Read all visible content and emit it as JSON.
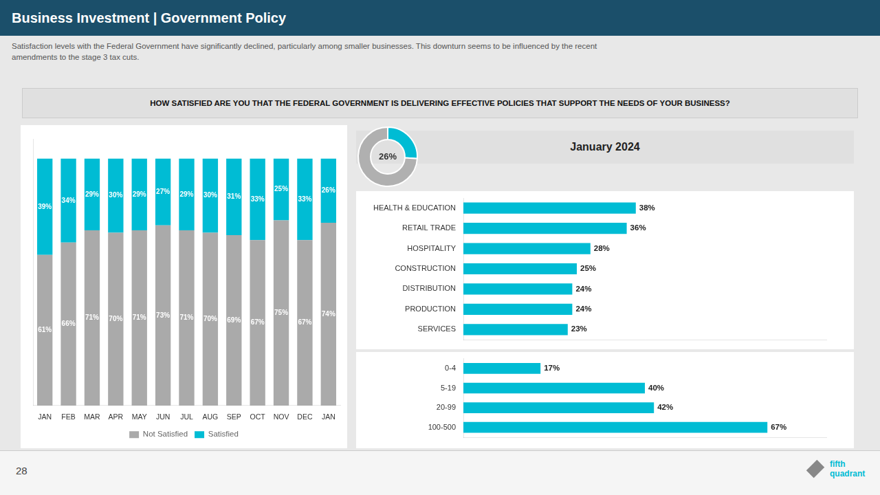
{
  "chart_data": [
    {
      "type": "bar",
      "title": "Business Investment | Government Policy",
      "subtitle": "Satisfaction levels with the Federal Government have significantly declined, particularly among smaller businesses. This downturn seems to be influenced by the recent\namendments to the stage 3 tax cuts.",
      "annotations": [
        "HOW SATISFIED ARE YOU THAT THE FEDERAL GOVERNMENT IS DELIVERING EFFECTIVE POLICIES THAT SUPPORT THE NEEDS OF YOUR BUSINESS?",
        "28",
        "fifth",
        "quadrant"
      ],
      "categories": [
        "JAN",
        "FEB",
        "MAR",
        "APR",
        "MAY",
        "JUN",
        "JUL",
        "AUG",
        "SEP",
        "OCT",
        "NOV",
        "DEC",
        "JAN"
      ],
      "series": [
        {
          "name": "Not Satisfied",
          "color": "#aaaaaa",
          "values": [
            61,
            66,
            71,
            70,
            71,
            73,
            71,
            70,
            69,
            67,
            75,
            67,
            74
          ],
          "value_labels": [
            "61%",
            "66%",
            "71%",
            "70%",
            "71%",
            "73%",
            "71%",
            "70%",
            "69%",
            "67%",
            "75%",
            "67%",
            "74%"
          ]
        },
        {
          "name": "Satisfied",
          "color": "#00bcd4",
          "values": [
            39,
            34,
            29,
            30,
            29,
            27,
            29,
            30,
            31,
            33,
            25,
            33,
            26
          ],
          "value_labels": [
            "39%",
            "34%",
            "29%",
            "30%",
            "29%",
            "27%",
            "29%",
            "30%",
            "31%",
            "33%",
            "25%",
            "33%",
            "26%"
          ]
        }
      ],
      "stacked": true,
      "data_labels": true,
      "ylim": [
        0,
        108
      ],
      "tick_labels": "x",
      "grid": false,
      "legend": "bottom"
    },
    {
      "type": "doughnut",
      "title": "January 2024",
      "values": [
        26,
        74
      ],
      "colors": [
        "#00bcd4",
        "#b0b0b0"
      ],
      "annotations": [
        "26%"
      ]
    },
    {
      "type": "bar",
      "orientation": "horizontal",
      "categories": [
        "HEALTH & EDUCATION",
        "RETAIL TRADE",
        "HOSPITALITY",
        "CONSTRUCTION",
        "DISTRIBUTION",
        "PRODUCTION",
        "SERVICES"
      ],
      "values": [
        38,
        36,
        28,
        25,
        24,
        24,
        23
      ],
      "value_labels": [
        "38%",
        "36%",
        "28%",
        "25%",
        "24%",
        "24%",
        "23%"
      ],
      "color": "#00bcd4",
      "data_labels": true,
      "xlim": [
        0,
        80
      ],
      "tick_labels": "y",
      "grid": false
    },
    {
      "type": "bar",
      "orientation": "horizontal",
      "categories": [
        "0-4",
        "5-19",
        "20-99",
        "100-500"
      ],
      "values": [
        17,
        40,
        42,
        67
      ],
      "value_labels": [
        "17%",
        "40%",
        "42%",
        "67%"
      ],
      "color": "#00bcd4",
      "data_labels": true,
      "xlim": [
        0,
        80
      ],
      "tick_labels": "y",
      "grid": false
    }
  ]
}
